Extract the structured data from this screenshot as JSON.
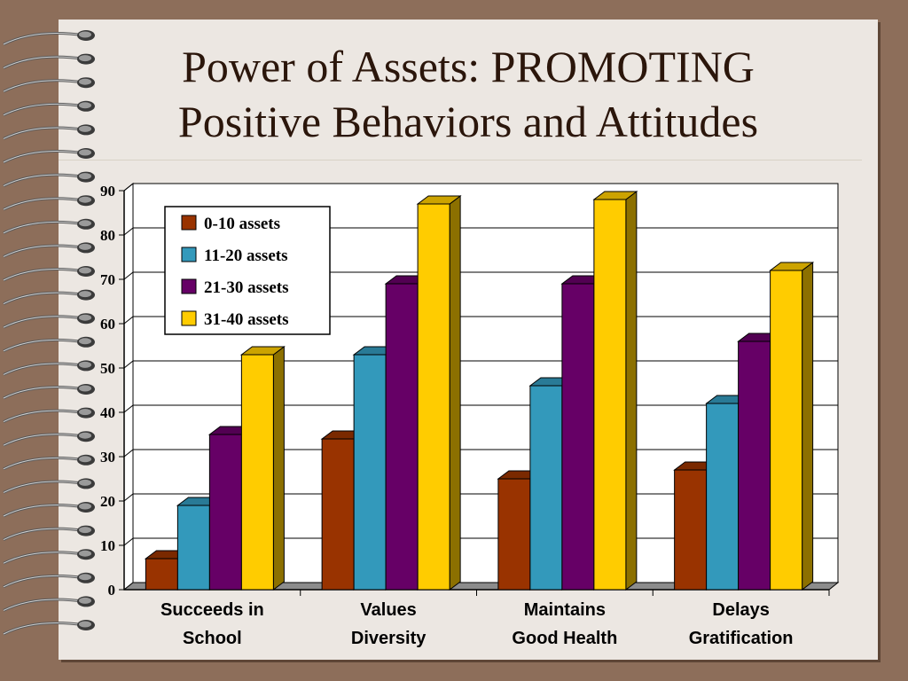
{
  "slide": {
    "title_line1": "Power of Assets: PROMOTING",
    "title_line2": "Positive Behaviors and Attitudes"
  },
  "colors": {
    "background": "#8d6e5a",
    "paper": "#ece7e2",
    "title": "#2b160b"
  },
  "chart_data": {
    "type": "bar",
    "title": "",
    "xlabel": "",
    "ylabel": "",
    "ylim": [
      0,
      90
    ],
    "yticks": [
      "0",
      "10",
      "20",
      "30",
      "40",
      "50",
      "60",
      "70",
      "80",
      "90"
    ],
    "grid": true,
    "legend_position": "top-left",
    "categories": [
      [
        "Succeeds in",
        "School"
      ],
      [
        "Values",
        "Diversity"
      ],
      [
        "Maintains",
        "Good Health"
      ],
      [
        "Delays",
        "Gratification"
      ]
    ],
    "series": [
      {
        "name": "0-10 assets",
        "color": "#993300",
        "values": [
          7,
          34,
          25,
          27
        ]
      },
      {
        "name": "11-20 assets",
        "color": "#3399bb",
        "values": [
          19,
          53,
          46,
          42
        ]
      },
      {
        "name": "21-30 assets",
        "color": "#660066",
        "values": [
          35,
          69,
          69,
          56
        ]
      },
      {
        "name": "31-40 assets",
        "color": "#ffcc00",
        "values": [
          53,
          87,
          88,
          72
        ]
      }
    ]
  }
}
